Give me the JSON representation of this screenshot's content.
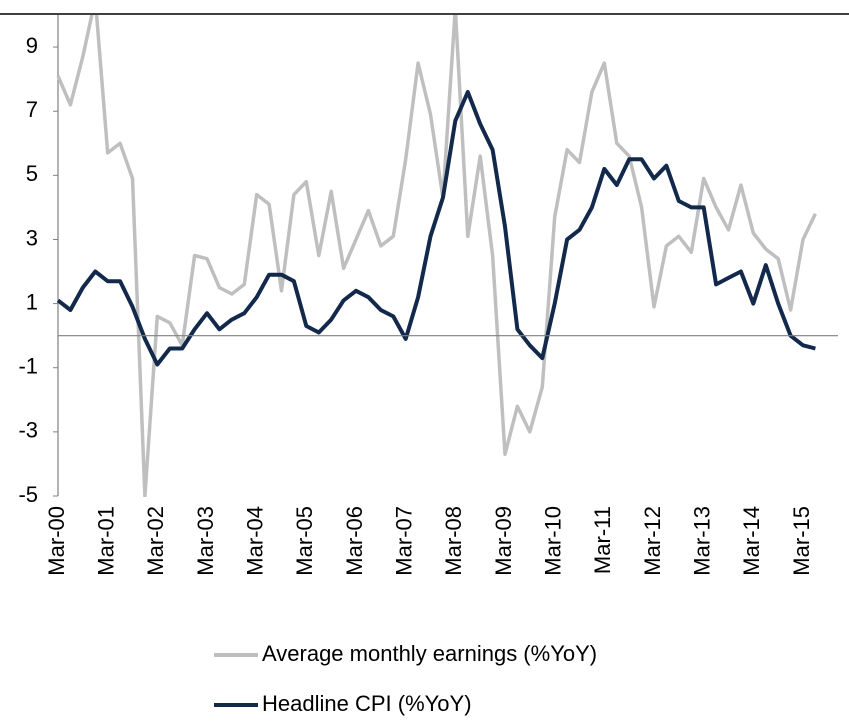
{
  "chart_data": {
    "type": "line",
    "categories": [
      "Mar-00",
      null,
      null,
      null,
      "Mar-01",
      null,
      null,
      null,
      "Mar-02",
      null,
      null,
      null,
      "Mar-03",
      null,
      null,
      null,
      "Mar-04",
      null,
      null,
      null,
      "Mar-05",
      null,
      null,
      null,
      "Mar-06",
      null,
      null,
      null,
      "Mar-07",
      null,
      null,
      null,
      "Mar-08",
      null,
      null,
      null,
      "Mar-09",
      null,
      null,
      null,
      "Mar-10",
      null,
      null,
      null,
      "Mar-11",
      null,
      null,
      null,
      "Mar-12",
      null,
      null,
      null,
      "Mar-13",
      null,
      null,
      null,
      "Mar-14",
      null,
      null,
      null,
      "Mar-15",
      null
    ],
    "series": [
      {
        "name": "Average monthly earnings (%YoY)",
        "color": "#bfbfbf",
        "values": [
          8.1,
          7.2,
          8.7,
          10.5,
          5.7,
          6.0,
          4.9,
          -5.0,
          0.6,
          0.4,
          -0.3,
          2.5,
          2.4,
          1.5,
          1.3,
          1.6,
          4.4,
          4.1,
          1.4,
          4.4,
          4.8,
          2.5,
          4.5,
          2.1,
          3.0,
          3.9,
          2.8,
          3.1,
          5.5,
          8.5,
          6.9,
          4.3,
          10.2,
          3.1,
          5.6,
          2.5,
          -3.7,
          -2.2,
          -3.0,
          -1.6,
          3.7,
          5.8,
          5.4,
          7.6,
          8.5,
          6.0,
          5.6,
          4.0,
          0.9,
          2.8,
          3.1,
          2.6,
          4.9,
          4.0,
          3.3,
          4.7,
          3.2,
          2.7,
          2.4,
          0.8,
          3.0,
          3.8
        ]
      },
      {
        "name": "Headline CPI (%YoY)",
        "color": "#13294b",
        "values": [
          1.1,
          0.8,
          1.5,
          2.0,
          1.7,
          1.7,
          0.9,
          -0.1,
          -0.9,
          -0.4,
          -0.4,
          0.2,
          0.7,
          0.2,
          0.5,
          0.7,
          1.2,
          1.9,
          1.9,
          1.7,
          0.3,
          0.1,
          0.5,
          1.1,
          1.4,
          1.2,
          0.8,
          0.6,
          -0.1,
          1.2,
          3.1,
          4.3,
          6.7,
          7.6,
          6.6,
          5.8,
          3.4,
          0.2,
          -0.3,
          -0.7,
          1.0,
          3.0,
          3.3,
          4.0,
          5.2,
          4.7,
          5.5,
          5.5,
          4.9,
          5.3,
          4.2,
          4.0,
          4.0,
          1.6,
          1.8,
          2.0,
          1.0,
          2.2,
          1.0,
          0.0,
          -0.3,
          -0.4
        ]
      }
    ],
    "ylim": [
      -5,
      10
    ],
    "yticks": [
      -5,
      -3,
      -1,
      1,
      3,
      5,
      7,
      9
    ]
  }
}
